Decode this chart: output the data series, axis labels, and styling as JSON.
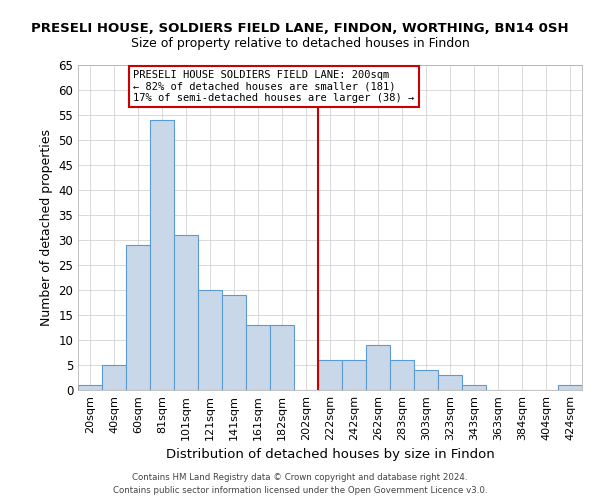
{
  "title": "PRESELI HOUSE, SOLDIERS FIELD LANE, FINDON, WORTHING, BN14 0SH",
  "subtitle": "Size of property relative to detached houses in Findon",
  "xlabel": "Distribution of detached houses by size in Findon",
  "ylabel": "Number of detached properties",
  "bar_labels": [
    "20sqm",
    "40sqm",
    "60sqm",
    "81sqm",
    "101sqm",
    "121sqm",
    "141sqm",
    "161sqm",
    "182sqm",
    "202sqm",
    "222sqm",
    "242sqm",
    "262sqm",
    "283sqm",
    "303sqm",
    "323sqm",
    "343sqm",
    "363sqm",
    "384sqm",
    "404sqm",
    "424sqm"
  ],
  "bar_values": [
    1,
    5,
    29,
    54,
    31,
    20,
    19,
    13,
    13,
    0,
    6,
    6,
    9,
    6,
    4,
    3,
    1,
    0,
    0,
    0,
    1
  ],
  "bar_color": "#c8d8e8",
  "bar_edge_color": "#5b9bd5",
  "vline_label_idx": 9,
  "vline_color": "#cc0000",
  "ylim": [
    0,
    65
  ],
  "yticks": [
    0,
    5,
    10,
    15,
    20,
    25,
    30,
    35,
    40,
    45,
    50,
    55,
    60,
    65
  ],
  "annotation_title": "PRESELI HOUSE SOLDIERS FIELD LANE: 200sqm",
  "annotation_line1": "← 82% of detached houses are smaller (181)",
  "annotation_line2": "17% of semi-detached houses are larger (38) →",
  "annotation_box_color": "#ffffff",
  "annotation_box_edge": "#cc0000",
  "footer_line1": "Contains HM Land Registry data © Crown copyright and database right 2024.",
  "footer_line2": "Contains public sector information licensed under the Open Government Licence v3.0."
}
